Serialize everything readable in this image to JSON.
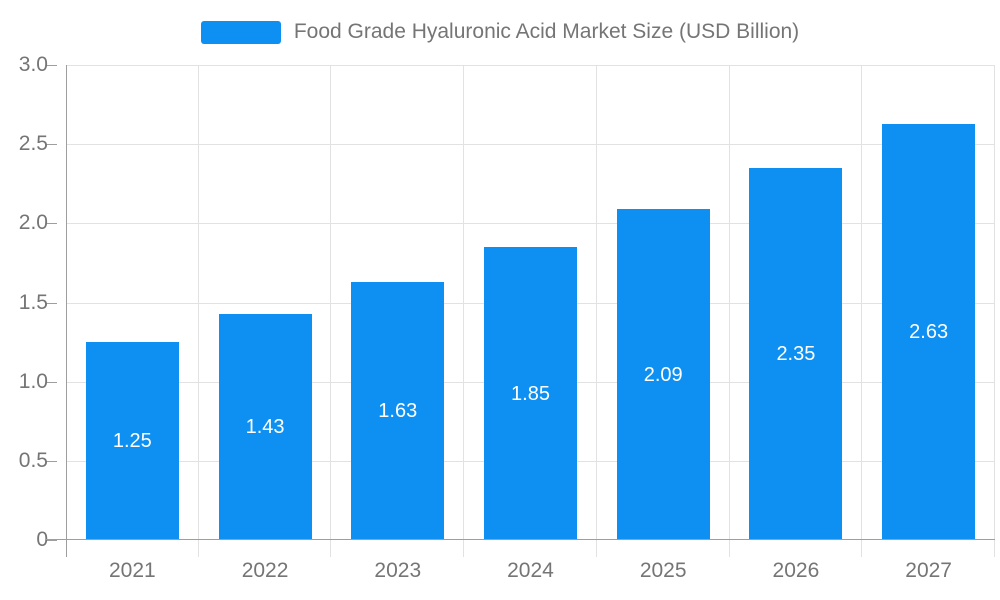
{
  "chart": {
    "colors": {
      "bar": "#0e90f2",
      "bar_label": "#ffffff",
      "axis_label": "#757575",
      "grid_line": "#e2e2e2",
      "axis_line": "#9e9e9e"
    }
  },
  "chart_data": {
    "type": "bar",
    "title": "Food Grade Hyaluronic Acid Market Size (USD Billion)",
    "series_name": "Food Grade Hyaluronic Acid Market Size (USD Billion)",
    "categories": [
      "2021",
      "2022",
      "2023",
      "2024",
      "2025",
      "2026",
      "2027"
    ],
    "values": [
      1.25,
      1.43,
      1.63,
      1.85,
      2.09,
      2.35,
      2.63
    ],
    "bar_labels": [
      "1.25",
      "1.43",
      "1.63",
      "1.85",
      "2.09",
      "2.35",
      "2.63"
    ],
    "xlabel": "",
    "ylabel": "",
    "ylim": [
      0,
      3.0
    ],
    "y_ticks": [
      0,
      0.5,
      1.0,
      1.5,
      2.0,
      2.5,
      3.0
    ],
    "y_tick_labels": [
      "0",
      "0.5",
      "1.0",
      "1.5",
      "2.0",
      "2.5",
      "3.0"
    ],
    "grid": true,
    "legend_position": "top"
  }
}
